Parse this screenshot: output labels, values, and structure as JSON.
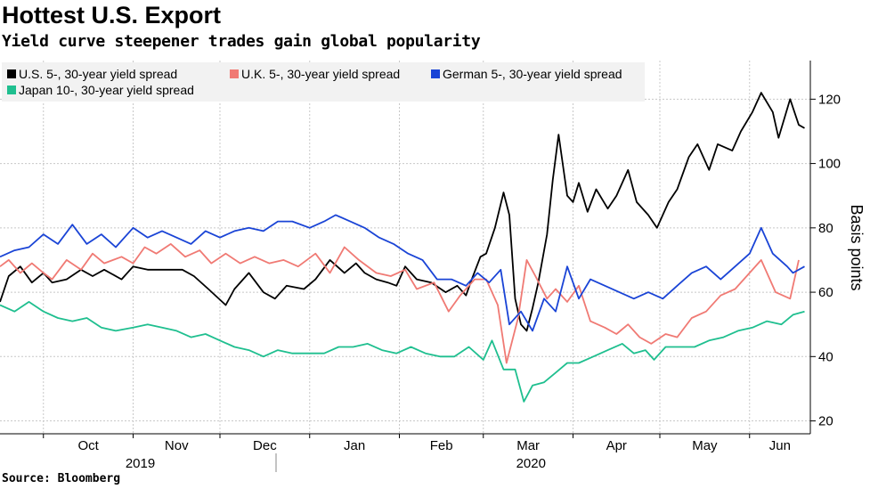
{
  "title": "Hottest U.S. Export",
  "subtitle": "Yield curve steepener trades gain global popularity",
  "source": "Source: Bloomberg",
  "chart_data": {
    "type": "line",
    "ylabel": "Basis points",
    "ylim": [
      16,
      132
    ],
    "yticks": [
      20,
      40,
      60,
      80,
      100,
      120
    ],
    "grid": true,
    "legend_position": "top-left",
    "x_axis_start": "2019-09-16",
    "x_axis_end": "2020-06-22",
    "month_ticks": [
      {
        "label": "Oct",
        "date": "2019-10-01"
      },
      {
        "label": "Nov",
        "date": "2019-11-01"
      },
      {
        "label": "Dec",
        "date": "2019-12-01"
      },
      {
        "label": "Jan",
        "date": "2020-01-01"
      },
      {
        "label": "Feb",
        "date": "2020-02-01"
      },
      {
        "label": "Mar",
        "date": "2020-03-01"
      },
      {
        "label": "Apr",
        "date": "2020-04-01"
      },
      {
        "label": "May",
        "date": "2020-05-01"
      },
      {
        "label": "Jun",
        "date": "2020-06-01"
      }
    ],
    "year_labels": [
      {
        "label": "2019",
        "date": "2019-11-01"
      },
      {
        "label": "2020",
        "date": "2020-03-15"
      }
    ],
    "year_divider_date": "2019-12-31",
    "series": [
      {
        "name": "U.S. 5-, 30-year yield spread",
        "color": "#000000",
        "points": [
          [
            "2019-09-16",
            57
          ],
          [
            "2019-09-19",
            65
          ],
          [
            "2019-09-23",
            68
          ],
          [
            "2019-09-27",
            63
          ],
          [
            "2019-10-01",
            66
          ],
          [
            "2019-10-04",
            63
          ],
          [
            "2019-10-09",
            64
          ],
          [
            "2019-10-14",
            67
          ],
          [
            "2019-10-18",
            65
          ],
          [
            "2019-10-22",
            67
          ],
          [
            "2019-10-28",
            64
          ],
          [
            "2019-11-01",
            68
          ],
          [
            "2019-11-06",
            67
          ],
          [
            "2019-11-12",
            67
          ],
          [
            "2019-11-18",
            67
          ],
          [
            "2019-11-22",
            65
          ],
          [
            "2019-11-27",
            61
          ],
          [
            "2019-12-03",
            56
          ],
          [
            "2019-12-06",
            61
          ],
          [
            "2019-12-11",
            66
          ],
          [
            "2019-12-16",
            60
          ],
          [
            "2019-12-20",
            58
          ],
          [
            "2019-12-24",
            62
          ],
          [
            "2019-12-30",
            61
          ],
          [
            "2020-01-03",
            64
          ],
          [
            "2020-01-08",
            70
          ],
          [
            "2020-01-13",
            66
          ],
          [
            "2020-01-17",
            69
          ],
          [
            "2020-01-20",
            66
          ],
          [
            "2020-01-24",
            64
          ],
          [
            "2020-01-28",
            63
          ],
          [
            "2020-01-31",
            62
          ],
          [
            "2020-02-03",
            68
          ],
          [
            "2020-02-07",
            64
          ],
          [
            "2020-02-12",
            63
          ],
          [
            "2020-02-17",
            60
          ],
          [
            "2020-02-21",
            62
          ],
          [
            "2020-02-24",
            59
          ],
          [
            "2020-02-26",
            64
          ],
          [
            "2020-02-29",
            71
          ],
          [
            "2020-03-02",
            72
          ],
          [
            "2020-03-05",
            80
          ],
          [
            "2020-03-08",
            91
          ],
          [
            "2020-03-10",
            84
          ],
          [
            "2020-03-12",
            58
          ],
          [
            "2020-03-14",
            50
          ],
          [
            "2020-03-16",
            48
          ],
          [
            "2020-03-18",
            55
          ],
          [
            "2020-03-20",
            63
          ],
          [
            "2020-03-23",
            78
          ],
          [
            "2020-03-25",
            95
          ],
          [
            "2020-03-27",
            109
          ],
          [
            "2020-03-30",
            90
          ],
          [
            "2020-04-01",
            88
          ],
          [
            "2020-04-03",
            94
          ],
          [
            "2020-04-06",
            85
          ],
          [
            "2020-04-09",
            92
          ],
          [
            "2020-04-13",
            86
          ],
          [
            "2020-04-16",
            90
          ],
          [
            "2020-04-20",
            98
          ],
          [
            "2020-04-23",
            88
          ],
          [
            "2020-04-27",
            84
          ],
          [
            "2020-04-30",
            80
          ],
          [
            "2020-05-04",
            88
          ],
          [
            "2020-05-07",
            92
          ],
          [
            "2020-05-11",
            102
          ],
          [
            "2020-05-14",
            106
          ],
          [
            "2020-05-18",
            98
          ],
          [
            "2020-05-21",
            106
          ],
          [
            "2020-05-26",
            104
          ],
          [
            "2020-05-29",
            110
          ],
          [
            "2020-06-02",
            116
          ],
          [
            "2020-06-05",
            122
          ],
          [
            "2020-06-09",
            116
          ],
          [
            "2020-06-11",
            108
          ],
          [
            "2020-06-15",
            120
          ],
          [
            "2020-06-18",
            112
          ],
          [
            "2020-06-20",
            111
          ]
        ]
      },
      {
        "name": "U.K. 5-, 30-year yield spread",
        "color": "#f07a74",
        "points": [
          [
            "2019-09-16",
            68
          ],
          [
            "2019-09-19",
            70
          ],
          [
            "2019-09-23",
            66
          ],
          [
            "2019-09-27",
            69
          ],
          [
            "2019-10-01",
            66
          ],
          [
            "2019-10-04",
            64
          ],
          [
            "2019-10-09",
            70
          ],
          [
            "2019-10-14",
            67
          ],
          [
            "2019-10-18",
            72
          ],
          [
            "2019-10-22",
            69
          ],
          [
            "2019-10-28",
            71
          ],
          [
            "2019-11-01",
            69
          ],
          [
            "2019-11-05",
            74
          ],
          [
            "2019-11-09",
            72
          ],
          [
            "2019-11-14",
            75
          ],
          [
            "2019-11-19",
            71
          ],
          [
            "2019-11-24",
            73
          ],
          [
            "2019-11-28",
            69
          ],
          [
            "2019-12-03",
            72
          ],
          [
            "2019-12-08",
            69
          ],
          [
            "2019-12-13",
            71
          ],
          [
            "2019-12-18",
            69
          ],
          [
            "2019-12-23",
            70
          ],
          [
            "2019-12-28",
            68
          ],
          [
            "2020-01-03",
            72
          ],
          [
            "2020-01-08",
            66
          ],
          [
            "2020-01-13",
            74
          ],
          [
            "2020-01-18",
            70
          ],
          [
            "2020-01-24",
            66
          ],
          [
            "2020-01-29",
            65
          ],
          [
            "2020-02-03",
            67
          ],
          [
            "2020-02-07",
            61
          ],
          [
            "2020-02-13",
            63
          ],
          [
            "2020-02-18",
            54
          ],
          [
            "2020-02-22",
            59
          ],
          [
            "2020-02-27",
            64
          ],
          [
            "2020-03-02",
            64
          ],
          [
            "2020-03-06",
            56
          ],
          [
            "2020-03-09",
            38
          ],
          [
            "2020-03-13",
            52
          ],
          [
            "2020-03-16",
            70
          ],
          [
            "2020-03-19",
            65
          ],
          [
            "2020-03-23",
            58
          ],
          [
            "2020-03-26",
            61
          ],
          [
            "2020-03-30",
            57
          ],
          [
            "2020-04-03",
            62
          ],
          [
            "2020-04-07",
            51
          ],
          [
            "2020-04-12",
            49
          ],
          [
            "2020-04-16",
            47
          ],
          [
            "2020-04-20",
            50
          ],
          [
            "2020-04-24",
            46
          ],
          [
            "2020-04-28",
            44
          ],
          [
            "2020-05-03",
            47
          ],
          [
            "2020-05-07",
            46
          ],
          [
            "2020-05-12",
            52
          ],
          [
            "2020-05-17",
            54
          ],
          [
            "2020-05-22",
            59
          ],
          [
            "2020-05-27",
            61
          ],
          [
            "2020-06-01",
            66
          ],
          [
            "2020-06-05",
            70
          ],
          [
            "2020-06-10",
            60
          ],
          [
            "2020-06-15",
            58
          ],
          [
            "2020-06-18",
            70
          ]
        ]
      },
      {
        "name": "German 5-, 30-year yield spread",
        "color": "#1a44d6",
        "points": [
          [
            "2019-09-16",
            71
          ],
          [
            "2019-09-21",
            73
          ],
          [
            "2019-09-26",
            74
          ],
          [
            "2019-10-01",
            78
          ],
          [
            "2019-10-06",
            75
          ],
          [
            "2019-10-11",
            81
          ],
          [
            "2019-10-16",
            75
          ],
          [
            "2019-10-21",
            78
          ],
          [
            "2019-10-26",
            74
          ],
          [
            "2019-11-01",
            80
          ],
          [
            "2019-11-06",
            77
          ],
          [
            "2019-11-11",
            79
          ],
          [
            "2019-11-16",
            77
          ],
          [
            "2019-11-21",
            75
          ],
          [
            "2019-11-26",
            79
          ],
          [
            "2019-12-01",
            77
          ],
          [
            "2019-12-06",
            79
          ],
          [
            "2019-12-11",
            80
          ],
          [
            "2019-12-16",
            79
          ],
          [
            "2019-12-21",
            82
          ],
          [
            "2019-12-26",
            82
          ],
          [
            "2020-01-01",
            80
          ],
          [
            "2020-01-06",
            82
          ],
          [
            "2020-01-10",
            84
          ],
          [
            "2020-01-15",
            82
          ],
          [
            "2020-01-20",
            80
          ],
          [
            "2020-01-25",
            77
          ],
          [
            "2020-01-30",
            75
          ],
          [
            "2020-02-04",
            72
          ],
          [
            "2020-02-09",
            70
          ],
          [
            "2020-02-14",
            64
          ],
          [
            "2020-02-19",
            64
          ],
          [
            "2020-02-24",
            62
          ],
          [
            "2020-02-28",
            66
          ],
          [
            "2020-03-03",
            63
          ],
          [
            "2020-03-07",
            67
          ],
          [
            "2020-03-10",
            50
          ],
          [
            "2020-03-14",
            54
          ],
          [
            "2020-03-18",
            48
          ],
          [
            "2020-03-22",
            58
          ],
          [
            "2020-03-26",
            54
          ],
          [
            "2020-03-30",
            68
          ],
          [
            "2020-04-03",
            58
          ],
          [
            "2020-04-07",
            64
          ],
          [
            "2020-04-12",
            62
          ],
          [
            "2020-04-17",
            60
          ],
          [
            "2020-04-22",
            58
          ],
          [
            "2020-04-27",
            60
          ],
          [
            "2020-05-02",
            58
          ],
          [
            "2020-05-07",
            62
          ],
          [
            "2020-05-12",
            66
          ],
          [
            "2020-05-17",
            68
          ],
          [
            "2020-05-22",
            64
          ],
          [
            "2020-05-27",
            68
          ],
          [
            "2020-06-01",
            72
          ],
          [
            "2020-06-05",
            80
          ],
          [
            "2020-06-09",
            72
          ],
          [
            "2020-06-14",
            68
          ],
          [
            "2020-06-16",
            66
          ],
          [
            "2020-06-20",
            68
          ]
        ]
      },
      {
        "name": "Japan 10-, 30-year yield spread",
        "color": "#1fbf8f",
        "points": [
          [
            "2019-09-16",
            56
          ],
          [
            "2019-09-21",
            54
          ],
          [
            "2019-09-26",
            57
          ],
          [
            "2019-10-01",
            54
          ],
          [
            "2019-10-06",
            52
          ],
          [
            "2019-10-11",
            51
          ],
          [
            "2019-10-16",
            52
          ],
          [
            "2019-10-21",
            49
          ],
          [
            "2019-10-26",
            48
          ],
          [
            "2019-11-01",
            49
          ],
          [
            "2019-11-06",
            50
          ],
          [
            "2019-11-11",
            49
          ],
          [
            "2019-11-16",
            48
          ],
          [
            "2019-11-21",
            46
          ],
          [
            "2019-11-26",
            47
          ],
          [
            "2019-12-01",
            45
          ],
          [
            "2019-12-06",
            43
          ],
          [
            "2019-12-11",
            42
          ],
          [
            "2019-12-16",
            40
          ],
          [
            "2019-12-21",
            42
          ],
          [
            "2019-12-26",
            41
          ],
          [
            "2020-01-01",
            41
          ],
          [
            "2020-01-06",
            41
          ],
          [
            "2020-01-11",
            43
          ],
          [
            "2020-01-16",
            43
          ],
          [
            "2020-01-21",
            44
          ],
          [
            "2020-01-26",
            42
          ],
          [
            "2020-01-31",
            41
          ],
          [
            "2020-02-05",
            43
          ],
          [
            "2020-02-10",
            41
          ],
          [
            "2020-02-15",
            40
          ],
          [
            "2020-02-20",
            40
          ],
          [
            "2020-02-25",
            43
          ],
          [
            "2020-03-01",
            39
          ],
          [
            "2020-03-04",
            45
          ],
          [
            "2020-03-08",
            36
          ],
          [
            "2020-03-12",
            36
          ],
          [
            "2020-03-15",
            26
          ],
          [
            "2020-03-18",
            31
          ],
          [
            "2020-03-22",
            32
          ],
          [
            "2020-03-26",
            35
          ],
          [
            "2020-03-30",
            38
          ],
          [
            "2020-04-03",
            38
          ],
          [
            "2020-04-08",
            40
          ],
          [
            "2020-04-13",
            42
          ],
          [
            "2020-04-18",
            44
          ],
          [
            "2020-04-22",
            41
          ],
          [
            "2020-04-26",
            42
          ],
          [
            "2020-04-29",
            39
          ],
          [
            "2020-05-03",
            43
          ],
          [
            "2020-05-08",
            43
          ],
          [
            "2020-05-13",
            43
          ],
          [
            "2020-05-18",
            45
          ],
          [
            "2020-05-23",
            46
          ],
          [
            "2020-05-28",
            48
          ],
          [
            "2020-06-02",
            49
          ],
          [
            "2020-06-07",
            51
          ],
          [
            "2020-06-12",
            50
          ],
          [
            "2020-06-16",
            53
          ],
          [
            "2020-06-20",
            54
          ]
        ]
      }
    ]
  }
}
